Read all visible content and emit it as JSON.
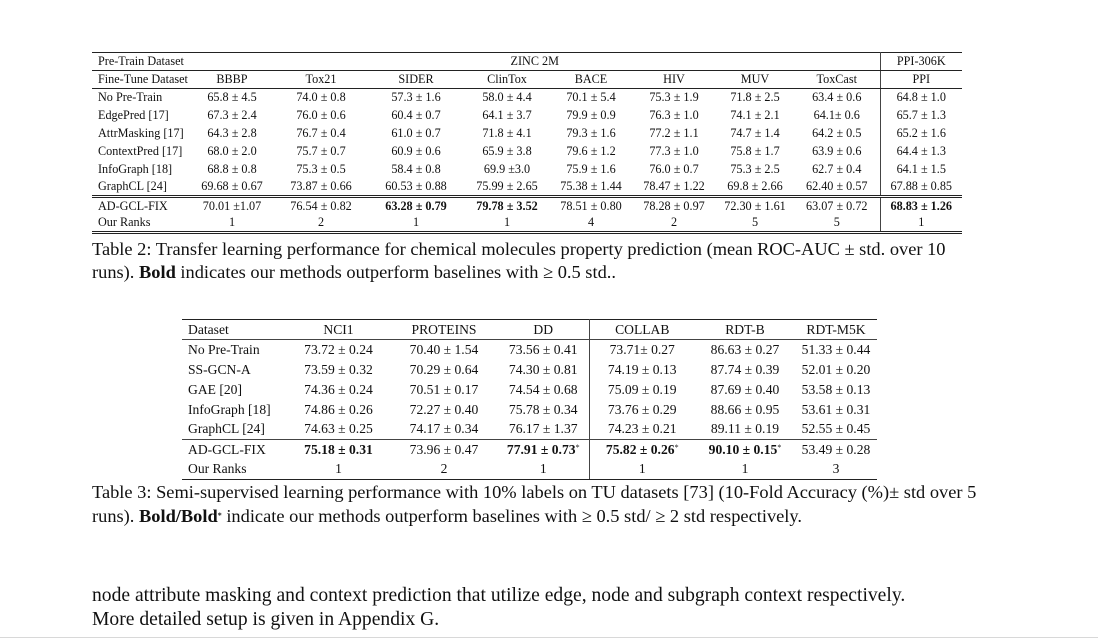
{
  "table2": {
    "pretrain_label": "Pre-Train Dataset",
    "pretrain_zinc": "ZINC 2M",
    "pretrain_ppi": "PPI-306K",
    "finetune_label": "Fine-Tune Dataset",
    "columns": [
      "BBBP",
      "Tox21",
      "SIDER",
      "ClinTox",
      "BACE",
      "HIV",
      "MUV",
      "ToxCast",
      "PPI"
    ],
    "rows": [
      {
        "method": "No Pre-Train",
        "values": [
          "65.8 ± 4.5",
          "74.0 ± 0.8",
          "57.3 ± 1.6",
          "58.0 ± 4.4",
          "70.1 ± 5.4",
          "75.3 ± 1.9",
          "71.8 ± 2.5",
          "63.4 ± 0.6",
          "64.8 ± 1.0"
        ]
      },
      {
        "method": "EdgePred [17]",
        "values": [
          "67.3 ± 2.4",
          "76.0 ± 0.6",
          "60.4 ± 0.7",
          "64.1 ± 3.7",
          "79.9 ± 0.9",
          "76.3 ± 1.0",
          "74.1 ± 2.1",
          "64.1± 0.6",
          "65.7 ± 1.3"
        ]
      },
      {
        "method": "AttrMasking [17]",
        "values": [
          "64.3 ± 2.8",
          "76.7 ± 0.4",
          "61.0 ± 0.7",
          "71.8 ± 4.1",
          "79.3 ± 1.6",
          "77.2 ± 1.1",
          "74.7 ± 1.4",
          "64.2 ± 0.5",
          "65.2 ± 1.6"
        ]
      },
      {
        "method": "ContextPred [17]",
        "values": [
          "68.0 ± 2.0",
          "75.7 ± 0.7",
          "60.9 ± 0.6",
          "65.9 ± 3.8",
          "79.6 ± 1.2",
          "77.3 ± 1.0",
          "75.8 ± 1.7",
          "63.9 ± 0.6",
          "64.4 ± 1.3"
        ]
      },
      {
        "method": "InfoGraph [18]",
        "values": [
          "68.8 ± 0.8",
          "75.3 ± 0.5",
          "58.4 ± 0.8",
          "69.9 ±3.0",
          "75.9 ± 1.6",
          "76.0 ± 0.7",
          "75.3 ± 2.5",
          "62.7 ± 0.4",
          "64.1 ± 1.5"
        ]
      },
      {
        "method": "GraphCL [24]",
        "values": [
          "69.68 ± 0.67",
          "73.87 ± 0.66",
          "60.53 ± 0.88",
          "75.99 ± 2.65",
          "75.38 ± 1.44",
          "78.47 ± 1.22",
          "69.8 ± 2.66",
          "62.40 ± 0.57",
          "67.88 ± 0.85"
        ]
      }
    ],
    "ours": {
      "method": "AD-GCL-FIX",
      "values": [
        "70.01 ±1.07",
        "76.54 ± 0.82",
        "63.28 ± 0.79",
        "79.78 ± 3.52",
        "78.51 ± 0.80",
        "78.28 ± 0.97",
        "72.30 ± 1.61",
        "63.07 ± 0.72",
        "68.83 ± 1.26"
      ],
      "bold": [
        false,
        false,
        true,
        true,
        false,
        false,
        false,
        false,
        true
      ]
    },
    "ranks": {
      "label": "Our Ranks",
      "values": [
        "1",
        "2",
        "1",
        "1",
        "4",
        "2",
        "5",
        "5",
        "1"
      ]
    },
    "caption": {
      "prefix": "Table 2: Transfer learning performance for chemical molecules property prediction (mean ROC-AUC ± std. over 10 runs). ",
      "bold": "Bold",
      "suffix": " indicates our methods outperform baselines with ≥ 0.5 std.."
    }
  },
  "table3": {
    "dataset_label": "Dataset",
    "columns": [
      "NCI1",
      "PROTEINS",
      "DD",
      "COLLAB",
      "RDT-B",
      "RDT-M5K"
    ],
    "rows": [
      {
        "method": "No Pre-Train",
        "values": [
          "73.72 ± 0.24",
          "70.40 ± 1.54",
          "73.56 ± 0.41",
          "73.71± 0.27",
          "86.63 ± 0.27",
          "51.33 ± 0.44"
        ]
      },
      {
        "method": "SS-GCN-A",
        "values": [
          "73.59 ± 0.32",
          "70.29 ± 0.64",
          "74.30 ± 0.81",
          "74.19 ± 0.13",
          "87.74 ± 0.39",
          "52.01 ± 0.20"
        ]
      },
      {
        "method": "GAE [20]",
        "values": [
          "74.36 ± 0.24",
          "70.51 ± 0.17",
          "74.54 ± 0.68",
          "75.09 ± 0.19",
          "87.69 ± 0.40",
          "53.58 ± 0.13"
        ]
      },
      {
        "method": "InfoGraph [18]",
        "values": [
          "74.86 ± 0.26",
          "72.27 ± 0.40",
          "75.78 ± 0.34",
          "73.76 ± 0.29",
          "88.66 ± 0.95",
          "53.61 ± 0.31"
        ]
      },
      {
        "method": "GraphCL [24]",
        "values": [
          "74.63 ± 0.25",
          "74.17 ± 0.34",
          "76.17 ± 1.37",
          "74.23 ± 0.21",
          "89.11 ± 0.19",
          "52.55 ± 0.45"
        ]
      }
    ],
    "ours": {
      "method": "AD-GCL-FIX",
      "values": [
        "75.18 ± 0.31",
        "73.96 ± 0.47",
        "77.91 ± 0.73",
        "75.82 ± 0.26",
        "90.10 ± 0.15",
        "53.49 ± 0.28"
      ],
      "bold": [
        true,
        false,
        true,
        true,
        true,
        false
      ],
      "star": [
        false,
        false,
        true,
        true,
        true,
        false
      ]
    },
    "ranks": {
      "label": "Our Ranks",
      "values": [
        "1",
        "2",
        "1",
        "1",
        "1",
        "3"
      ]
    },
    "caption": {
      "prefix": "Table 3: Semi-supervised learning performance with 10% labels on TU datasets [73] (10-Fold Accuracy (%)± std over 5 runs). ",
      "bold": "Bold/Bold",
      "star": "*",
      "suffix": " indicate our methods outperform baselines with ≥ 0.5 std/ ≥ 2 std respectively."
    }
  },
  "body": {
    "line1": "node attribute masking and context prediction that utilize edge, node and subgraph context respectively.",
    "line2": "More detailed setup is given in Appendix G."
  }
}
